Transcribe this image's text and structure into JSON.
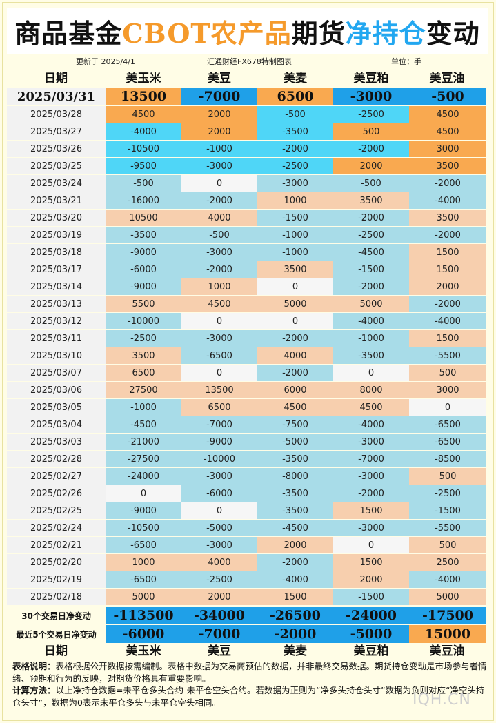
{
  "title": {
    "part1": "商品基金",
    "part2": "CBOT",
    "part3": "农产品",
    "part4": "期货",
    "part5": "净持仓",
    "part6": "变动"
  },
  "meta": {
    "updated": "更新于 2025/4/1",
    "source": "汇通财经FX678特制图表",
    "unit": "单位：手"
  },
  "headers": [
    "日期",
    "美玉米",
    "美豆",
    "美麦",
    "美豆粕",
    "美豆油"
  ],
  "colors": {
    "neg": "#a8dce8",
    "pos": "#f7cfae",
    "zero": "#f6f6f6",
    "hl_neg": "#4fd6f7",
    "hl_pos": "#f9a950",
    "sum_neg": "#1fa0e8",
    "sum_pos": "#f9a950",
    "date_bg": "#f2f2f2"
  },
  "chart_data": {
    "type": "table",
    "columns": [
      "美玉米",
      "美豆",
      "美麦",
      "美豆粕",
      "美豆油"
    ],
    "rows": [
      {
        "date": "2025/03/31",
        "values": [
          13500,
          -7000,
          6500,
          -3000,
          -500
        ]
      },
      {
        "date": "2025/03/28",
        "values": [
          4500,
          2000,
          -500,
          -2500,
          4500
        ]
      },
      {
        "date": "2025/03/27",
        "values": [
          -4000,
          2000,
          -3500,
          500,
          4500
        ]
      },
      {
        "date": "2025/03/26",
        "values": [
          -10500,
          -1000,
          -2000,
          -2000,
          3000
        ]
      },
      {
        "date": "2025/03/25",
        "values": [
          -9500,
          -3000,
          -2500,
          2000,
          3500
        ]
      },
      {
        "date": "2025/03/24",
        "values": [
          -500,
          0,
          -3000,
          -500,
          -2000
        ]
      },
      {
        "date": "2025/03/21",
        "values": [
          -16000,
          -2000,
          1000,
          3500,
          -4000
        ]
      },
      {
        "date": "2025/03/20",
        "values": [
          10500,
          4000,
          -1500,
          -2000,
          3500
        ]
      },
      {
        "date": "2025/03/19",
        "values": [
          -3500,
          -500,
          -1000,
          -2500,
          -2000
        ]
      },
      {
        "date": "2025/03/18",
        "values": [
          -9000,
          -3000,
          -1000,
          -4500,
          1500
        ]
      },
      {
        "date": "2025/03/17",
        "values": [
          -6000,
          -2000,
          3500,
          -1500,
          1500
        ]
      },
      {
        "date": "2025/03/14",
        "values": [
          -9000,
          1000,
          0,
          -2000,
          2000
        ]
      },
      {
        "date": "2025/03/13",
        "values": [
          5500,
          4500,
          5000,
          5000,
          -2000
        ]
      },
      {
        "date": "2025/03/12",
        "values": [
          -10000,
          0,
          0,
          -4000,
          -4000
        ]
      },
      {
        "date": "2025/03/11",
        "values": [
          -2500,
          -3000,
          -2000,
          -1000,
          1500
        ]
      },
      {
        "date": "2025/03/10",
        "values": [
          3500,
          -6500,
          4000,
          -3500,
          -5500
        ]
      },
      {
        "date": "2025/03/07",
        "values": [
          6500,
          0,
          -2000,
          0,
          500
        ]
      },
      {
        "date": "2025/03/06",
        "values": [
          27500,
          13500,
          6000,
          8000,
          3000
        ]
      },
      {
        "date": "2025/03/05",
        "values": [
          -1000,
          6500,
          4500,
          4500,
          0
        ]
      },
      {
        "date": "2025/03/04",
        "values": [
          -4500,
          -7000,
          -7500,
          -4000,
          -6500
        ]
      },
      {
        "date": "2025/03/03",
        "values": [
          -21000,
          -9000,
          -5000,
          -3000,
          -6500
        ]
      },
      {
        "date": "2025/02/28",
        "values": [
          -27500,
          -10000,
          -3500,
          -7000,
          -8500
        ]
      },
      {
        "date": "2025/02/27",
        "values": [
          -24000,
          -3000,
          -8000,
          -3000,
          500
        ]
      },
      {
        "date": "2025/02/26",
        "values": [
          0,
          -6000,
          -3500,
          -2000,
          -2500
        ]
      },
      {
        "date": "2025/02/25",
        "values": [
          -9000,
          0,
          -3500,
          1500,
          -1500
        ]
      },
      {
        "date": "2025/02/24",
        "values": [
          -10500,
          -5000,
          -4500,
          -3000,
          -5500
        ]
      },
      {
        "date": "2025/02/21",
        "values": [
          -6500,
          -3000,
          2000,
          0,
          500
        ]
      },
      {
        "date": "2025/02/20",
        "values": [
          1000,
          4000,
          -2000,
          1500,
          2500
        ]
      },
      {
        "date": "2025/02/19",
        "values": [
          -6500,
          -2500,
          -4000,
          2000,
          -4000
        ]
      },
      {
        "date": "2025/02/18",
        "values": [
          5000,
          2000,
          1500,
          -1500,
          5000
        ]
      }
    ],
    "summary": [
      {
        "label": "30个交易日净变动",
        "values": [
          -113500,
          -34000,
          -26500,
          -24000,
          -17500
        ]
      },
      {
        "label": "最近5个交易日净变动",
        "values": [
          -6000,
          -7000,
          -2000,
          -5000,
          15000
        ]
      }
    ]
  },
  "notes": {
    "label1": "表格说明：",
    "text1": "表格根据公开数据按需编制。表格中数据为交易商预估的数据，并非最终交易数据。期货持仓变动是市场参与者情绪、预期和行为的反映，对期货价格具有重要影响。",
    "label2": "计算方法：",
    "text2": "以上净持仓数据=未平仓多头合约-未平仓空头合约。若数据为正则为“净多头持仓头寸”数据为负则对应“净空头持仓头寸”，数据为0表示未平仓多头与未平仓空头相同。"
  },
  "watermark": "IQH.CN"
}
